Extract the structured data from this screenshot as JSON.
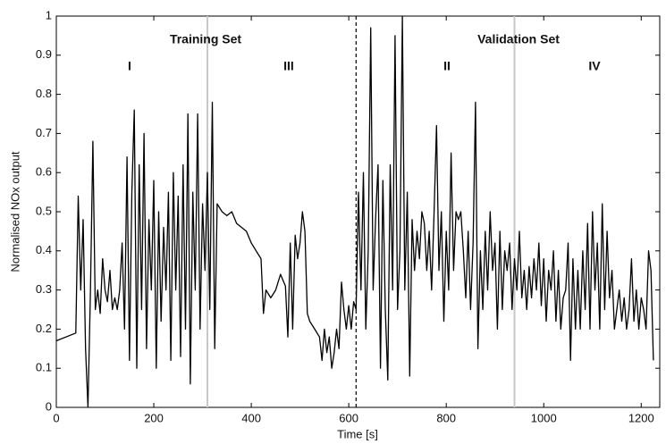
{
  "chart_data": {
    "type": "line",
    "xlabel": "Time [s]",
    "ylabel": "Normalised NOx output",
    "color": "#000000",
    "x": [
      0,
      40,
      45,
      50,
      55,
      60,
      65,
      70,
      75,
      80,
      85,
      90,
      95,
      100,
      105,
      110,
      115,
      120,
      125,
      130,
      135,
      140,
      145,
      150,
      155,
      160,
      165,
      170,
      175,
      180,
      185,
      190,
      195,
      200,
      205,
      210,
      215,
      220,
      225,
      230,
      235,
      240,
      245,
      250,
      255,
      260,
      265,
      270,
      275,
      280,
      285,
      290,
      295,
      300,
      305,
      310,
      315,
      320,
      325,
      330,
      340,
      350,
      360,
      370,
      380,
      390,
      400,
      410,
      420,
      425,
      430,
      440,
      450,
      460,
      470,
      475,
      480,
      485,
      490,
      495,
      500,
      505,
      510,
      515,
      520,
      530,
      540,
      545,
      550,
      555,
      560,
      565,
      570,
      575,
      580,
      585,
      590,
      595,
      600,
      605,
      610,
      615,
      620,
      625,
      630,
      635,
      640,
      645,
      650,
      655,
      660,
      665,
      670,
      675,
      680,
      685,
      690,
      695,
      700,
      705,
      710,
      715,
      720,
      725,
      730,
      735,
      740,
      745,
      750,
      755,
      760,
      765,
      770,
      775,
      780,
      785,
      790,
      795,
      800,
      805,
      810,
      815,
      820,
      825,
      830,
      835,
      840,
      845,
      850,
      855,
      860,
      865,
      870,
      875,
      880,
      885,
      890,
      895,
      900,
      905,
      910,
      915,
      920,
      925,
      930,
      935,
      940,
      945,
      950,
      955,
      960,
      965,
      970,
      975,
      980,
      985,
      990,
      995,
      1000,
      1005,
      1010,
      1015,
      1020,
      1025,
      1030,
      1035,
      1040,
      1045,
      1050,
      1055,
      1060,
      1065,
      1070,
      1075,
      1080,
      1085,
      1090,
      1095,
      1100,
      1105,
      1110,
      1115,
      1120,
      1125,
      1130,
      1135,
      1140,
      1145,
      1150,
      1155,
      1160,
      1165,
      1170,
      1175,
      1180,
      1185,
      1190,
      1195,
      1200,
      1205,
      1210,
      1215,
      1220,
      1225
    ],
    "values": [
      0.17,
      0.19,
      0.54,
      0.3,
      0.48,
      0.15,
      0.0,
      0.3,
      0.68,
      0.25,
      0.3,
      0.24,
      0.38,
      0.3,
      0.27,
      0.35,
      0.25,
      0.28,
      0.25,
      0.3,
      0.42,
      0.2,
      0.64,
      0.12,
      0.55,
      0.76,
      0.1,
      0.62,
      0.25,
      0.7,
      0.15,
      0.48,
      0.3,
      0.58,
      0.1,
      0.5,
      0.22,
      0.46,
      0.3,
      0.55,
      0.12,
      0.6,
      0.3,
      0.54,
      0.13,
      0.62,
      0.2,
      0.75,
      0.06,
      0.55,
      0.3,
      0.75,
      0.2,
      0.52,
      0.35,
      0.6,
      0.25,
      0.78,
      0.15,
      0.52,
      0.5,
      0.49,
      0.5,
      0.47,
      0.46,
      0.45,
      0.42,
      0.4,
      0.38,
      0.24,
      0.3,
      0.28,
      0.3,
      0.34,
      0.31,
      0.18,
      0.42,
      0.2,
      0.44,
      0.38,
      0.42,
      0.5,
      0.45,
      0.24,
      0.22,
      0.2,
      0.18,
      0.12,
      0.2,
      0.14,
      0.18,
      0.1,
      0.14,
      0.2,
      0.15,
      0.32,
      0.25,
      0.2,
      0.26,
      0.2,
      0.27,
      0.25,
      0.55,
      0.3,
      0.6,
      0.2,
      0.4,
      0.97,
      0.3,
      0.48,
      0.62,
      0.1,
      0.58,
      0.25,
      0.07,
      0.62,
      0.3,
      0.95,
      0.25,
      0.4,
      1.0,
      0.3,
      0.55,
      0.08,
      0.48,
      0.35,
      0.45,
      0.38,
      0.5,
      0.47,
      0.35,
      0.45,
      0.3,
      0.5,
      0.72,
      0.35,
      0.5,
      0.22,
      0.45,
      0.3,
      0.65,
      0.35,
      0.5,
      0.48,
      0.5,
      0.4,
      0.28,
      0.45,
      0.25,
      0.42,
      0.78,
      0.15,
      0.4,
      0.25,
      0.45,
      0.3,
      0.5,
      0.35,
      0.42,
      0.2,
      0.45,
      0.25,
      0.4,
      0.35,
      0.42,
      0.25,
      0.38,
      0.3,
      0.45,
      0.28,
      0.35,
      0.25,
      0.36,
      0.28,
      0.38,
      0.3,
      0.42,
      0.26,
      0.38,
      0.22,
      0.35,
      0.3,
      0.4,
      0.22,
      0.35,
      0.2,
      0.28,
      0.3,
      0.42,
      0.12,
      0.38,
      0.2,
      0.35,
      0.2,
      0.4,
      0.25,
      0.47,
      0.2,
      0.5,
      0.3,
      0.42,
      0.2,
      0.52,
      0.25,
      0.45,
      0.28,
      0.35,
      0.2,
      0.25,
      0.3,
      0.22,
      0.28,
      0.2,
      0.25,
      0.38,
      0.22,
      0.3,
      0.2,
      0.28,
      0.25,
      0.2,
      0.4,
      0.35,
      0.12
    ],
    "xlim": [
      0,
      1238
    ],
    "ylim": [
      0,
      1
    ],
    "xticks": [
      0,
      200,
      400,
      600,
      800,
      1000,
      1200
    ],
    "yticks": [
      0,
      0.1,
      0.2,
      0.3,
      0.4,
      0.5,
      0.6,
      0.7,
      0.8,
      0.9,
      1
    ],
    "vlines": [
      {
        "x": 310,
        "color": "#c8c8c8",
        "dashed": false
      },
      {
        "x": 615,
        "color": "#000000",
        "dashed": true
      },
      {
        "x": 940,
        "color": "#c8c8c8",
        "dashed": false
      }
    ],
    "annotations": [
      "Training Set",
      "Validation Set",
      "I",
      "III",
      "II",
      "IV"
    ]
  }
}
